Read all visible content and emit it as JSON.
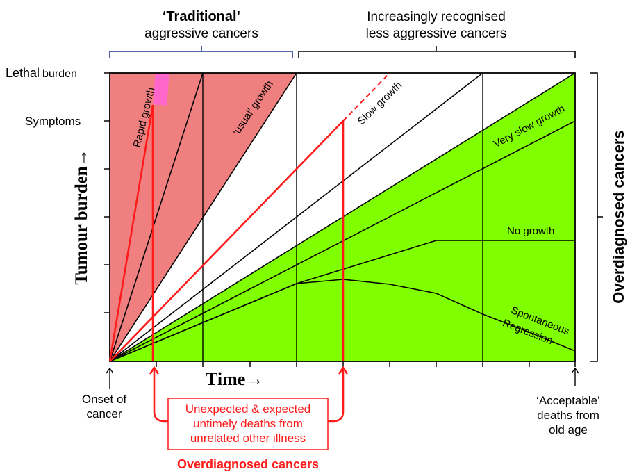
{
  "header": {
    "traditional_line1": "‘Traditional’",
    "traditional_line2": "aggressive cancers",
    "less_aggressive_line1": "Increasingly recognised",
    "less_aggressive_line2": "less aggressive cancers"
  },
  "y_levels": {
    "lethal_prefix": "Lethal",
    "lethal_suffix": "burden",
    "symptoms": "Symptoms"
  },
  "axes": {
    "y_label": "Tumour burden",
    "y_arrow": "→",
    "x_label": "Time",
    "x_arrow": "→"
  },
  "curves": {
    "rapid": "Rapid growth",
    "usual": "‘usual’ growth",
    "slow": "Slow growth",
    "very_slow": "Very slow growth",
    "no_growth": "No growth",
    "regression_line1": "Spontaneous",
    "regression_line2": "Regression"
  },
  "side": {
    "overdiagnosed": "Overdiagnosed cancers"
  },
  "bottom": {
    "onset_line1": "Onset of",
    "onset_line2": "cancer",
    "acceptable_line1": "‘Acceptable’",
    "acceptable_line2": "deaths from",
    "acceptable_line3": "old age",
    "box_line1": "Unexpected & expected",
    "box_line2": "untimely deaths from",
    "box_line3": "unrelated other illness",
    "overdiagnosed": "Overdiagnosed cancers"
  },
  "colors": {
    "aggressive_fill": "#f08080",
    "overdiagnosed_fill": "#80ff00",
    "highlight": "#ff1a1a",
    "bracket_blue": "#1f3a93",
    "pink_marker": "#ff66cc"
  }
}
